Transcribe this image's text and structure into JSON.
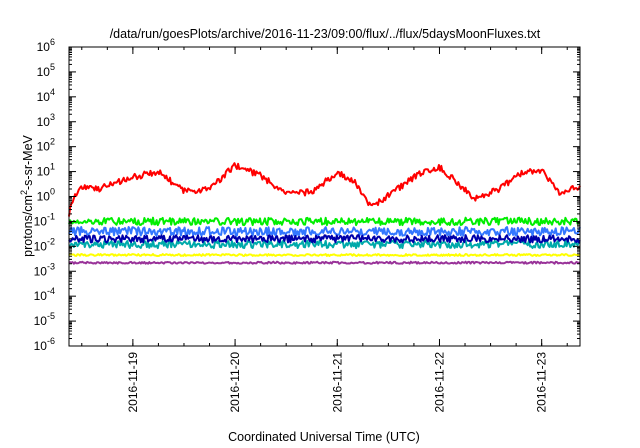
{
  "chart_data": {
    "type": "line",
    "title": "/data/run/goesPlots/archive/2016-11-23/09:00/flux/../flux/5daysMoonFluxes.txt",
    "xlabel": "Coordinated Universal Time (UTC)",
    "ylabel": {
      "base": "protons/cm",
      "sup": "2",
      "rest": "-s-sr-MeV"
    },
    "yscale": "log",
    "ylim_exp": [
      -6,
      6
    ],
    "xlim": [
      "2016-11-18T09:00",
      "2016-11-23T09:00"
    ],
    "ytick_exponents": [
      -6,
      -5,
      -4,
      -3,
      -2,
      -1,
      0,
      1,
      2,
      3,
      4,
      5,
      6
    ],
    "xticks": [
      {
        "label": "2016-11-19",
        "t": "2016-11-19T00:00"
      },
      {
        "label": "2016-11-20",
        "t": "2016-11-20T00:00"
      },
      {
        "label": "2016-11-21",
        "t": "2016-11-21T00:00"
      },
      {
        "label": "2016-11-22",
        "t": "2016-11-22T00:00"
      },
      {
        "label": "2016-11-23",
        "t": "2016-11-23T00:00"
      }
    ],
    "grid": false,
    "legend": "none",
    "series": [
      {
        "color": "#ff0000",
        "noise": 0.25,
        "x": [
          "2016-11-18T09:00",
          "2016-11-18T10:00",
          "2016-11-18T12:00",
          "2016-11-18T16:00",
          "2016-11-19T00:00",
          "2016-11-19T06:00",
          "2016-11-19T12:00",
          "2016-11-19T18:00",
          "2016-11-20T00:00",
          "2016-11-20T06:00",
          "2016-11-20T12:00",
          "2016-11-20T18:00",
          "2016-11-21T00:00",
          "2016-11-21T04:00",
          "2016-11-21T08:00",
          "2016-11-21T14:00",
          "2016-11-21T20:00",
          "2016-11-22T00:00",
          "2016-11-22T04:00",
          "2016-11-22T08:00",
          "2016-11-22T14:00",
          "2016-11-22T20:00",
          "2016-11-23T00:00",
          "2016-11-23T04:00",
          "2016-11-23T09:00"
        ],
        "y": [
          0.2,
          0.9,
          2.5,
          2,
          6,
          10,
          1.6,
          2,
          18,
          7,
          1.3,
          1.5,
          9,
          4,
          0.35,
          2,
          10,
          15,
          4,
          0.8,
          2,
          10,
          12,
          1.5,
          2.5
        ]
      },
      {
        "color": "#00ee00",
        "noise": 0.3,
        "x": [
          "2016-11-18T09:00",
          "2016-11-23T09:00"
        ],
        "y": [
          0.1,
          0.1
        ]
      },
      {
        "color": "#3377ff",
        "noise": 0.35,
        "x": [
          "2016-11-18T09:00",
          "2016-11-23T09:00"
        ],
        "y": [
          0.04,
          0.04
        ]
      },
      {
        "color": "#00aaaa",
        "noise": 0.3,
        "x": [
          "2016-11-18T09:00",
          "2016-11-23T09:00"
        ],
        "y": [
          0.012,
          0.012
        ]
      },
      {
        "color": "#0000aa",
        "noise": 0.3,
        "x": [
          "2016-11-18T09:00",
          "2016-11-23T09:00"
        ],
        "y": [
          0.02,
          0.02
        ]
      },
      {
        "color": "#ffff00",
        "noise": 0.08,
        "x": [
          "2016-11-18T09:00",
          "2016-11-23T09:00"
        ],
        "y": [
          0.0045,
          0.0045
        ]
      },
      {
        "color": "#993399",
        "noise": 0.08,
        "x": [
          "2016-11-18T09:00",
          "2016-11-23T09:00"
        ],
        "y": [
          0.0022,
          0.0022
        ]
      }
    ]
  }
}
